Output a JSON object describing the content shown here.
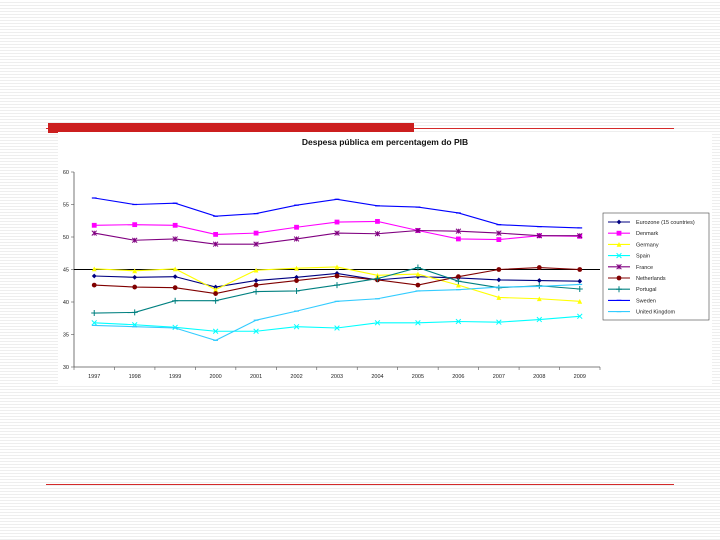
{
  "chart_data": {
    "type": "line",
    "title": "Despesa pública em percentagem do PIB",
    "xlabel": "",
    "ylabel": "",
    "categories": [
      "1997",
      "1998",
      "1999",
      "2000",
      "2001",
      "2002",
      "2003",
      "2004",
      "2005",
      "2006",
      "2007",
      "2008",
      "2009"
    ],
    "ylim": [
      30,
      60
    ],
    "yticks": [
      30,
      35,
      40,
      45,
      50,
      55,
      60
    ],
    "ytick_labels": [
      "30",
      "35",
      "40",
      "45",
      "50",
      "55",
      "60"
    ],
    "reference_line": 45,
    "legend_position": "right",
    "series": [
      {
        "name": "Eurozone (15 countries)",
        "color": "#000080",
        "marker": "diamond",
        "values": [
          44.0,
          43.8,
          43.9,
          42.3,
          43.3,
          43.8,
          44.4,
          43.4,
          43.9,
          43.7,
          43.4,
          43.3,
          43.2
        ]
      },
      {
        "name": "Denmark",
        "color": "#ff00ff",
        "marker": "square",
        "values": [
          51.8,
          51.9,
          51.8,
          50.4,
          50.6,
          51.5,
          52.3,
          52.4,
          51.0,
          49.7,
          49.6,
          50.2,
          50.1
        ]
      },
      {
        "name": "Germany",
        "color": "#ffff00",
        "marker": "triangle",
        "values": [
          45.1,
          44.8,
          45.1,
          41.9,
          44.9,
          45.2,
          45.4,
          44.1,
          44.3,
          42.6,
          40.7,
          40.5,
          40.1
        ]
      },
      {
        "name": "Spain",
        "color": "#00ffff",
        "marker": "x",
        "values": [
          36.8,
          36.5,
          36.1,
          35.5,
          35.5,
          36.2,
          36.0,
          36.8,
          36.8,
          37.0,
          36.9,
          37.3,
          37.8
        ]
      },
      {
        "name": "France",
        "color": "#800080",
        "marker": "star",
        "values": [
          50.6,
          49.5,
          49.7,
          48.9,
          48.9,
          49.7,
          50.6,
          50.5,
          51.0,
          50.9,
          50.6,
          50.2,
          50.2
        ]
      },
      {
        "name": "Netherlands",
        "color": "#800000",
        "marker": "circle",
        "values": [
          42.6,
          42.3,
          42.2,
          41.3,
          42.6,
          43.3,
          44.0,
          43.4,
          42.6,
          43.9,
          45.0,
          45.3,
          45.0
        ]
      },
      {
        "name": "Portugal",
        "color": "#008080",
        "marker": "plus",
        "values": [
          38.3,
          38.4,
          40.2,
          40.2,
          41.6,
          41.7,
          42.6,
          43.6,
          45.3,
          43.2,
          42.2,
          42.5,
          42.0
        ]
      },
      {
        "name": "Sweden",
        "color": "#0000ff",
        "marker": "line",
        "values": [
          56.0,
          55.0,
          55.2,
          53.2,
          53.6,
          54.9,
          55.8,
          54.8,
          54.6,
          53.7,
          51.9,
          51.6,
          51.4
        ]
      },
      {
        "name": "United Kingdom",
        "color": "#33ccff",
        "marker": "line",
        "values": [
          36.4,
          36.2,
          36.0,
          34.1,
          37.2,
          38.6,
          40.1,
          40.5,
          41.7,
          41.9,
          42.3,
          42.4,
          42.7
        ]
      }
    ]
  }
}
